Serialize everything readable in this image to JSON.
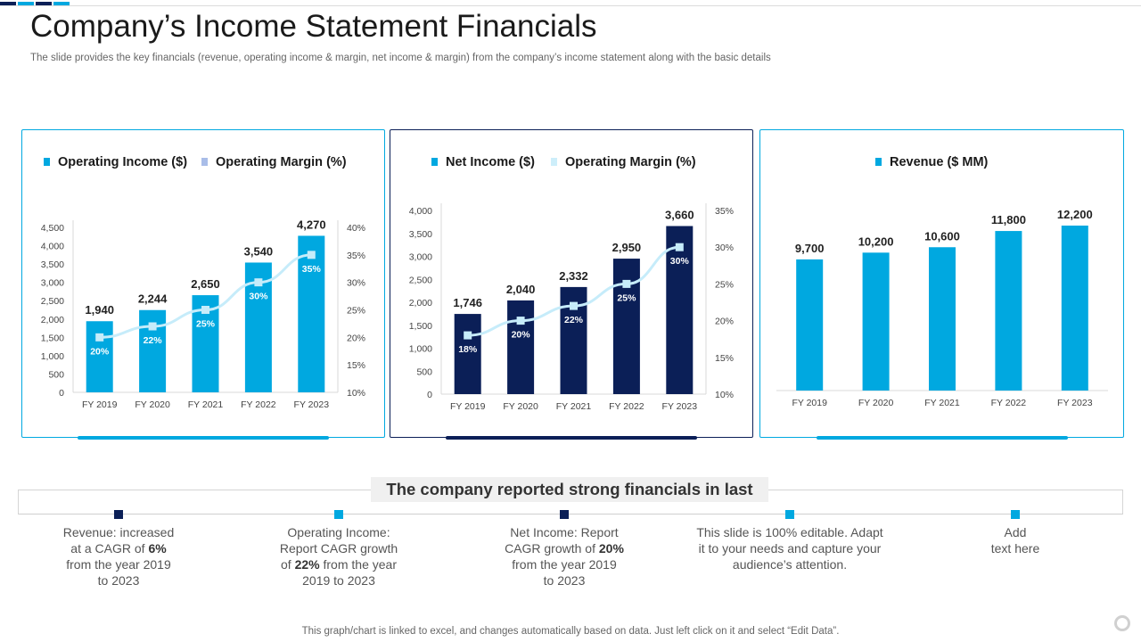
{
  "title": "Company’s Income Statement Financials",
  "subtitle": "The slide provides the key financials (revenue, operating income & margin, net income & margin) from the company’s income statement along with the basic details",
  "colors": {
    "bright_blue": "#00a8e0",
    "navy": "#0b1f57",
    "light_blue": "#cdeefa",
    "margin_line": "#c6ecfa",
    "top_bar": [
      "#0b1f57",
      "#00a8e0",
      "#0b1f57",
      "#00a8e0"
    ]
  },
  "chart_data": [
    {
      "type": "bar",
      "categories": [
        "FY 2019",
        "FY 2020",
        "FY 2021",
        "FY 2022",
        "FY 2023"
      ],
      "series": [
        {
          "name": "Operating Income ($)",
          "type": "bar",
          "color": "#00a8e0",
          "values": [
            1940,
            2244,
            2650,
            3540,
            4270
          ],
          "labels": [
            "1,940",
            "2,244",
            "2,650",
            "3,540",
            "4,270"
          ]
        },
        {
          "name": "Operating Margin (%)",
          "type": "line",
          "axis": "right",
          "legend_color": "#a9bde8",
          "values": [
            20,
            22,
            25,
            30,
            35
          ],
          "labels": [
            "20%",
            "22%",
            "25%",
            "30%",
            "35%"
          ]
        }
      ],
      "yticks": [
        "0",
        "500",
        "1,000",
        "1,500",
        "2,000",
        "2,500",
        "3,000",
        "3,500",
        "4,000",
        "4,500"
      ],
      "y2ticks": [
        "10%",
        "15%",
        "20%",
        "25%",
        "30%",
        "35%",
        "40%"
      ],
      "ylim": [
        0,
        4500
      ],
      "y2lim": [
        10,
        40
      ],
      "legend": "top"
    },
    {
      "type": "bar",
      "categories": [
        "FY 2019",
        "FY 2020",
        "FY 2021",
        "FY 2022",
        "FY 2023"
      ],
      "series": [
        {
          "name": "Net Income ($)",
          "type": "bar",
          "color": "#0b1f57",
          "legend_color": "#00a8e0",
          "values": [
            1746,
            2040,
            2332,
            2950,
            3660
          ],
          "labels": [
            "1,746",
            "2,040",
            "2,332",
            "2,950",
            "3,660"
          ]
        },
        {
          "name": "Operating Margin (%)",
          "type": "line",
          "axis": "right",
          "legend_color": "#cdeefa",
          "values": [
            18,
            20,
            22,
            25,
            30
          ],
          "labels": [
            "18%",
            "20%",
            "22%",
            "25%",
            "30%"
          ]
        }
      ],
      "yticks": [
        "0",
        "500",
        "1,000",
        "1,500",
        "2,000",
        "2,500",
        "3,000",
        "3,500",
        "4,000"
      ],
      "y2ticks": [
        "10%",
        "15%",
        "20%",
        "25%",
        "30%",
        "35%"
      ],
      "ylim": [
        0,
        4000
      ],
      "y2lim": [
        10,
        35
      ],
      "legend": "top"
    },
    {
      "type": "bar",
      "categories": [
        "FY 2019",
        "FY 2020",
        "FY 2021",
        "FY 2022",
        "FY 2023"
      ],
      "series": [
        {
          "name": "Revenue ($ MM)",
          "type": "bar",
          "color": "#00a8e0",
          "values": [
            9700,
            10200,
            10600,
            11800,
            12200
          ],
          "labels": [
            "9,700",
            "10,200",
            "10,600",
            "11,800",
            "12,200"
          ]
        }
      ],
      "ylim": [
        0,
        12200
      ],
      "legend": "top"
    }
  ],
  "banner": "The company reported strong financials in last",
  "notes": [
    {
      "lines": [
        [
          "Revenue: increased"
        ],
        [
          "at a CAGR of ",
          "6%"
        ],
        [
          "from the year 2019"
        ],
        [
          "to 2023"
        ]
      ],
      "marker_color": "#0b1f57"
    },
    {
      "lines": [
        [
          "Operating Income:"
        ],
        [
          "Report CAGR growth"
        ],
        [
          "of ",
          "22%",
          " from the year"
        ],
        [
          "2019 to 2023"
        ]
      ],
      "marker_color": "#00a8e0"
    },
    {
      "lines": [
        [
          "Net Income: Report"
        ],
        [
          "CAGR growth of ",
          "20%"
        ],
        [
          "from the year 2019"
        ],
        [
          "to 2023"
        ]
      ],
      "marker_color": "#0b1f57"
    },
    {
      "lines": [
        [
          "This slide is 100% editable. Adapt"
        ],
        [
          "it to your needs and capture your"
        ],
        [
          "audience’s attention."
        ]
      ],
      "marker_color": "#00a8e0"
    },
    {
      "lines": [
        [
          "Add"
        ],
        [
          "text here"
        ]
      ],
      "marker_color": "#00a8e0"
    }
  ],
  "footer": "This graph/chart is linked to excel,  and changes automatically based on data. Just left click on it and select “Edit Data”."
}
